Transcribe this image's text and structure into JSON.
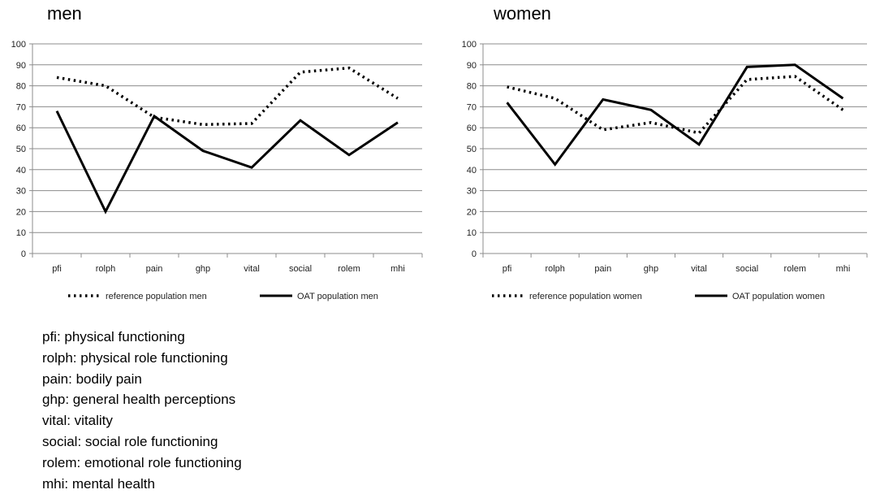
{
  "chart_data": [
    {
      "type": "line",
      "title": "men",
      "categories": [
        "pfi",
        "rolph",
        "pain",
        "ghp",
        "vital",
        "social",
        "rolem",
        "mhi"
      ],
      "ylim": [
        0,
        100
      ],
      "yticks": [
        0,
        10,
        20,
        30,
        40,
        50,
        60,
        70,
        80,
        90,
        100
      ],
      "grid": true,
      "legend": "bottom",
      "series": [
        {
          "name": "reference population men",
          "style": "dotted",
          "color": "#000000",
          "values": [
            84,
            80,
            65,
            61.5,
            62,
            86.5,
            88.5,
            74
          ]
        },
        {
          "name": "OAT population men",
          "style": "solid",
          "color": "#000000",
          "values": [
            68,
            20,
            65.5,
            49,
            41,
            63.5,
            47,
            62.5
          ]
        }
      ]
    },
    {
      "type": "line",
      "title": "women",
      "categories": [
        "pfi",
        "rolph",
        "pain",
        "ghp",
        "vital",
        "social",
        "rolem",
        "mhi"
      ],
      "ylim": [
        0,
        100
      ],
      "yticks": [
        0,
        10,
        20,
        30,
        40,
        50,
        60,
        70,
        80,
        90,
        100
      ],
      "grid": true,
      "legend": "bottom",
      "series": [
        {
          "name": "reference population women",
          "style": "dotted",
          "color": "#000000",
          "values": [
            79.5,
            74,
            59,
            62.5,
            57.5,
            83,
            84.5,
            68.5
          ]
        },
        {
          "name": "OAT population women",
          "style": "solid",
          "color": "#000000",
          "values": [
            72,
            42.5,
            73.5,
            68.5,
            52,
            89,
            90,
            74
          ]
        }
      ]
    }
  ],
  "glossary": [
    "pfi: physical functioning",
    "rolph: physical role functioning",
    "pain: bodily pain",
    "ghp: general health perceptions",
    "vital: vitality",
    "social: social role functioning",
    "rolem: emotional role functioning",
    "mhi: mental health"
  ],
  "colors": {
    "grid": "#8c8c8c",
    "axis": "#8c8c8c",
    "line": "#000000"
  }
}
